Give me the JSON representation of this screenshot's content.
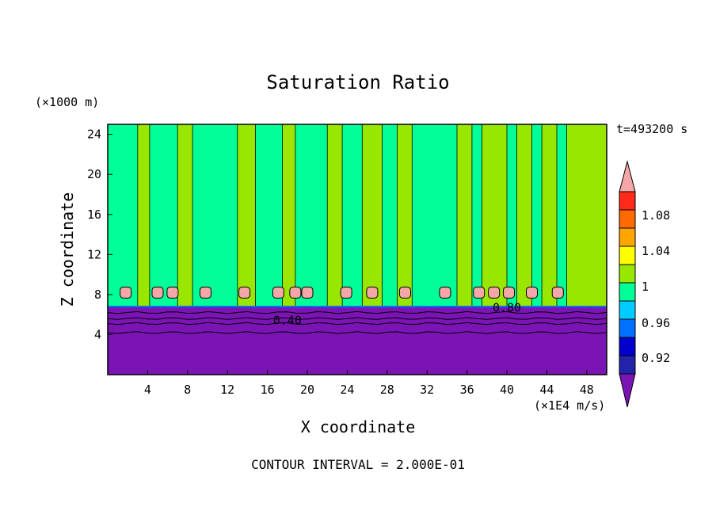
{
  "chart_data": {
    "type": "heatmap",
    "title": "Saturation Ratio",
    "xlabel": "X coordinate",
    "ylabel": "Z coordinate",
    "x_unit": "(×1E4 m/s)",
    "y_unit": "(×1000 m)",
    "time_label": "t=493200 s",
    "footer": "CONTOUR INTERVAL = 2.000E-01",
    "xlim": [
      0,
      50
    ],
    "ylim": [
      0,
      25
    ],
    "x_ticks": [
      "4",
      "8",
      "12",
      "16",
      "20",
      "24",
      "28",
      "32",
      "36",
      "40",
      "44",
      "48"
    ],
    "y_ticks": [
      "4",
      "8",
      "12",
      "16",
      "20",
      "24"
    ],
    "contour_labels": [
      {
        "text": "0.40",
        "x": 18.0,
        "y": 5.4
      },
      {
        "text": "0.80",
        "x": 40.0,
        "y": 6.7
      }
    ],
    "colorbar": {
      "levels": [
        0.92,
        0.96,
        1,
        1.04,
        1.08
      ],
      "labels": [
        "0.92",
        "0.96",
        "1",
        "1.04",
        "1.08"
      ],
      "colors": [
        "#7b14b4",
        "#2222aa",
        "#0000cc",
        "#0070ff",
        "#00ccff",
        "#00ff99",
        "#99e600",
        "#ffff00",
        "#ffa500",
        "#ff6a00",
        "#ff2a1a",
        "#f5a6a6"
      ]
    },
    "layers": {
      "dry_color": "#7b14b4",
      "near_sat_color": "#00ff99",
      "slightly_super_color": "#99e600",
      "super_color": "#f5a6a6",
      "boundary_height": 6.8
    },
    "green_columns": [
      [
        3,
        4.2
      ],
      [
        7,
        8.5
      ],
      [
        13,
        14.8
      ],
      [
        17.5,
        18.8
      ],
      [
        22,
        23.5
      ],
      [
        25.5,
        27.5
      ],
      [
        29,
        30.5
      ],
      [
        35,
        36.5
      ],
      [
        37.5,
        40
      ],
      [
        41,
        42.5
      ],
      [
        43.5,
        45
      ],
      [
        46,
        50
      ]
    ],
    "pink_cells": [
      1.8,
      5,
      6.5,
      9.8,
      13.7,
      17.1,
      18.8,
      20,
      23.9,
      26.5,
      29.8,
      33.8,
      37.2,
      38.7,
      40.2,
      42.5,
      45.1
    ]
  }
}
